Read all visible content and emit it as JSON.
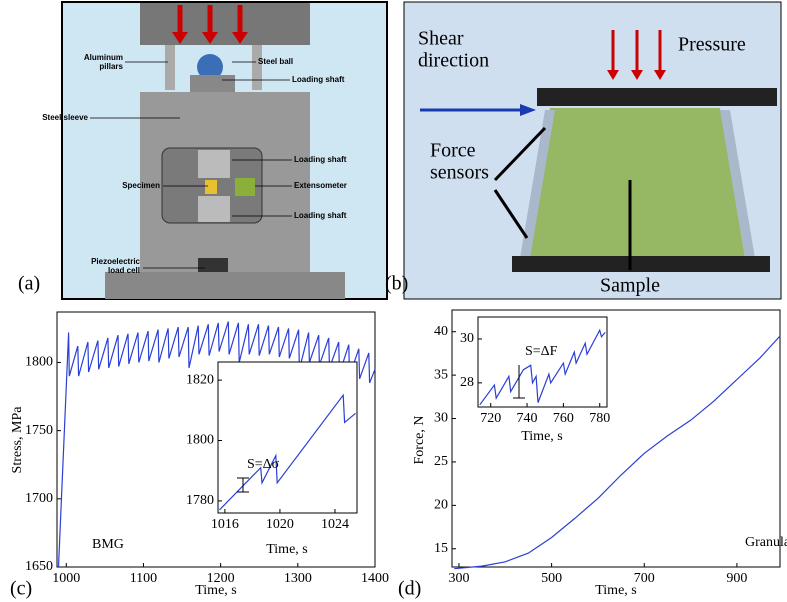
{
  "panels": {
    "a": "(a)",
    "b": "(b)",
    "c": "(c)",
    "d": "(d)"
  },
  "diagram_a": {
    "labels": [
      [
        "Aluminum",
        "pillars"
      ],
      [
        "Steel ball"
      ],
      [
        "Loading shaft"
      ],
      [
        "Steel sleeve"
      ],
      [
        "Loading shaft"
      ],
      [
        "Specimen"
      ],
      [
        "Extensometer"
      ],
      [
        "Loading shaft"
      ],
      [
        "Piezoelectric",
        "load cell"
      ]
    ]
  },
  "diagram_b": {
    "labels": [
      [
        "Shear",
        "direction"
      ],
      [
        "Pressure"
      ],
      [
        "Force",
        "sensors"
      ],
      [
        "Sample"
      ]
    ]
  },
  "chart_data": [
    {
      "type": "line",
      "xlabel": "Time, s",
      "ylabel": "Stress, MPa",
      "annotation": "BMG",
      "color": "#2a3fd6",
      "x": [
        990,
        1003,
        1004,
        1015,
        1016,
        1028,
        1029,
        1041,
        1042,
        1054,
        1055,
        1067,
        1068,
        1080,
        1081,
        1093,
        1094,
        1106,
        1107,
        1119,
        1120,
        1132,
        1133,
        1145,
        1146,
        1158,
        1159,
        1171,
        1172,
        1184,
        1185,
        1197,
        1198,
        1210,
        1211,
        1223,
        1224,
        1236,
        1237,
        1249,
        1250,
        1262,
        1263,
        1275,
        1276,
        1288,
        1289,
        1301,
        1302,
        1314,
        1315,
        1327,
        1328,
        1340,
        1341,
        1353,
        1354,
        1366,
        1367,
        1379,
        1380,
        1392,
        1393,
        1400
      ],
      "values": [
        1650,
        1822,
        1790,
        1812,
        1790,
        1815,
        1793,
        1816,
        1795,
        1818,
        1796,
        1820,
        1797,
        1821,
        1799,
        1822,
        1800,
        1823,
        1801,
        1824,
        1800,
        1825,
        1803,
        1826,
        1804,
        1826,
        1796,
        1827,
        1806,
        1828,
        1805,
        1829,
        1808,
        1830,
        1806,
        1829,
        1800,
        1828,
        1806,
        1828,
        1805,
        1827,
        1806,
        1826,
        1804,
        1825,
        1803,
        1824,
        1795,
        1822,
        1800,
        1820,
        1798,
        1818,
        1796,
        1815,
        1792,
        1813,
        1790,
        1810,
        1788,
        1807,
        1785,
        1795
      ],
      "xlim": [
        988,
        1400
      ],
      "ylim": [
        1650,
        1837
      ],
      "xticks": [
        1000,
        1100,
        1200,
        1300,
        1400
      ],
      "yticks": [
        1650,
        1700,
        1750,
        1800
      ]
    },
    {
      "type": "line",
      "xlabel": "Time, s",
      "annotation": "S=Δσ",
      "color": "#2a3fd6",
      "x": [
        1015.6,
        1018.6,
        1018.7,
        1019.7,
        1019.8,
        1024.6,
        1024.7,
        1025.5
      ],
      "values": [
        1777,
        1791,
        1786,
        1795,
        1786,
        1815,
        1806,
        1809
      ],
      "xlim": [
        1015.5,
        1025.6
      ],
      "ylim": [
        1776,
        1826
      ],
      "xticks": [
        1016,
        1020,
        1024
      ],
      "yticks": [
        1780,
        1800,
        1820
      ]
    },
    {
      "type": "line",
      "xlabel": "Time, s",
      "ylabel": "Force, N",
      "annotation": "Granular",
      "color": "#2a3fd6",
      "x": [
        290,
        350,
        400,
        450,
        500,
        550,
        600,
        650,
        700,
        750,
        800,
        850,
        900,
        950,
        993
      ],
      "values": [
        12.7,
        13,
        13.5,
        14.5,
        16.3,
        18.5,
        20.8,
        23.5,
        26,
        28,
        29.8,
        32,
        34.5,
        37,
        39.5
      ],
      "xlim": [
        285,
        993
      ],
      "ylim": [
        12.9,
        42.5
      ],
      "xticks": [
        300,
        500,
        700,
        900
      ],
      "yticks": [
        15,
        20,
        25,
        30,
        35,
        40
      ]
    },
    {
      "type": "line",
      "xlabel": "Time, s",
      "annotation": "S=ΔF",
      "color": "#2a3fd6",
      "x": [
        714,
        722,
        723,
        730,
        731,
        738,
        742,
        743,
        745,
        746,
        752,
        753,
        760,
        761,
        766,
        767,
        772,
        773,
        780,
        781,
        783
      ],
      "values": [
        27,
        27.9,
        27.3,
        28.3,
        27.6,
        28.6,
        28.8,
        28,
        28.3,
        27.1,
        28.4,
        28,
        28.9,
        28.4,
        29.4,
        28.9,
        29.8,
        29.3,
        30.4,
        30.1,
        30.3
      ],
      "xlim": [
        713,
        784
      ],
      "ylim": [
        26.9,
        31
      ],
      "xticks": [
        720,
        740,
        760,
        780
      ],
      "yticks": [
        28,
        30
      ]
    }
  ]
}
